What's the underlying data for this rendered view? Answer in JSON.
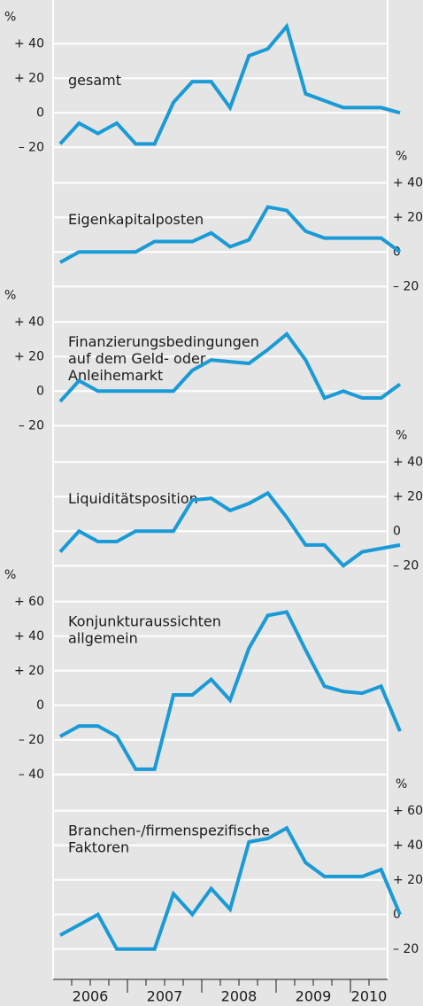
{
  "x_axis": {
    "categories": [
      "2006",
      "2007",
      "2008",
      "2009",
      "2010"
    ]
  },
  "chart_data": [
    {
      "type": "line",
      "title": [
        "gesamt"
      ],
      "unit": "%",
      "axis": "left",
      "color": "#1a9ad6",
      "values": [
        -18,
        -6,
        -12,
        -6,
        -18,
        -18,
        6,
        18,
        18,
        3,
        33,
        37,
        50,
        11,
        7,
        3,
        3,
        3,
        0
      ],
      "ylim": [
        -25,
        55
      ],
      "yticks": [
        {
          "value": -20,
          "label": "– 20"
        },
        0,
        {
          "value": 20,
          "label": "+ 20"
        },
        {
          "value": 40,
          "label": "+ 40"
        }
      ]
    },
    {
      "type": "line",
      "title": [
        "Eigenkapitalposten"
      ],
      "unit": "%",
      "axis": "right",
      "color": "#1a9ad6",
      "values": [
        -6,
        0,
        0,
        0,
        0,
        6,
        6,
        6,
        11,
        3,
        7,
        26,
        24,
        12,
        8,
        8,
        8,
        8,
        0
      ],
      "ylim": [
        -25,
        55
      ],
      "yticks": [
        {
          "value": -20,
          "label": "– 20"
        },
        0,
        {
          "value": 20,
          "label": "+ 20"
        },
        {
          "value": 40,
          "label": "+ 40"
        }
      ]
    },
    {
      "type": "line",
      "title": [
        "Finanzierungsbedingungen",
        "auf dem Geld- oder",
        "Anleihemarkt"
      ],
      "unit": "%",
      "axis": "left",
      "color": "#1a9ad6",
      "values": [
        -6,
        6,
        0,
        0,
        0,
        0,
        0,
        12,
        18,
        17,
        16,
        24,
        33,
        18,
        -4,
        0,
        -4,
        -4,
        4
      ],
      "ylim": [
        -25,
        55
      ],
      "yticks": [
        {
          "value": -20,
          "label": "– 20"
        },
        0,
        {
          "value": 20,
          "label": "+ 20"
        },
        {
          "value": 40,
          "label": "+ 40"
        }
      ]
    },
    {
      "type": "line",
      "title": [
        "Liquiditätsposition"
      ],
      "unit": "%",
      "axis": "right",
      "color": "#1a9ad6",
      "values": [
        -12,
        0,
        -6,
        -6,
        0,
        0,
        0,
        18,
        19,
        12,
        16,
        22,
        8,
        -8,
        -8,
        -20,
        -12,
        -10,
        -8
      ],
      "ylim": [
        -25,
        55
      ],
      "yticks": [
        {
          "value": -20,
          "label": "– 20"
        },
        0,
        {
          "value": 20,
          "label": "+ 20"
        },
        {
          "value": 40,
          "label": "+ 40"
        }
      ]
    },
    {
      "type": "line",
      "title": [
        "Konjunkturaussichten",
        "allgemein"
      ],
      "unit": "%",
      "axis": "left",
      "color": "#1a9ad6",
      "values": [
        -18,
        -12,
        -12,
        -18,
        -37,
        -37,
        6,
        6,
        15,
        3,
        33,
        52,
        54,
        32,
        11,
        8,
        7,
        11,
        -15
      ],
      "ylim": [
        -45,
        65
      ],
      "yticks": [
        {
          "value": -40,
          "label": "– 40"
        },
        {
          "value": -20,
          "label": "– 20"
        },
        0,
        {
          "value": 20,
          "label": "+ 20"
        },
        {
          "value": 40,
          "label": "+ 40"
        },
        {
          "value": 60,
          "label": "+ 60"
        }
      ]
    },
    {
      "type": "line",
      "title": [
        "Branchen-/firmenspezifische",
        "Faktoren"
      ],
      "unit": "%",
      "axis": "right",
      "color": "#1a9ad6",
      "values": [
        -12,
        -6,
        0,
        -20,
        -20,
        -20,
        12,
        0,
        15,
        3,
        42,
        44,
        50,
        30,
        22,
        22,
        22,
        26,
        0
      ],
      "ylim": [
        -25,
        65
      ],
      "yticks": [
        {
          "value": -20,
          "label": "– 20"
        },
        0,
        {
          "value": 20,
          "label": "+ 20"
        },
        {
          "value": 40,
          "label": "+ 40"
        },
        {
          "value": 60,
          "label": "+ 60"
        }
      ]
    }
  ]
}
